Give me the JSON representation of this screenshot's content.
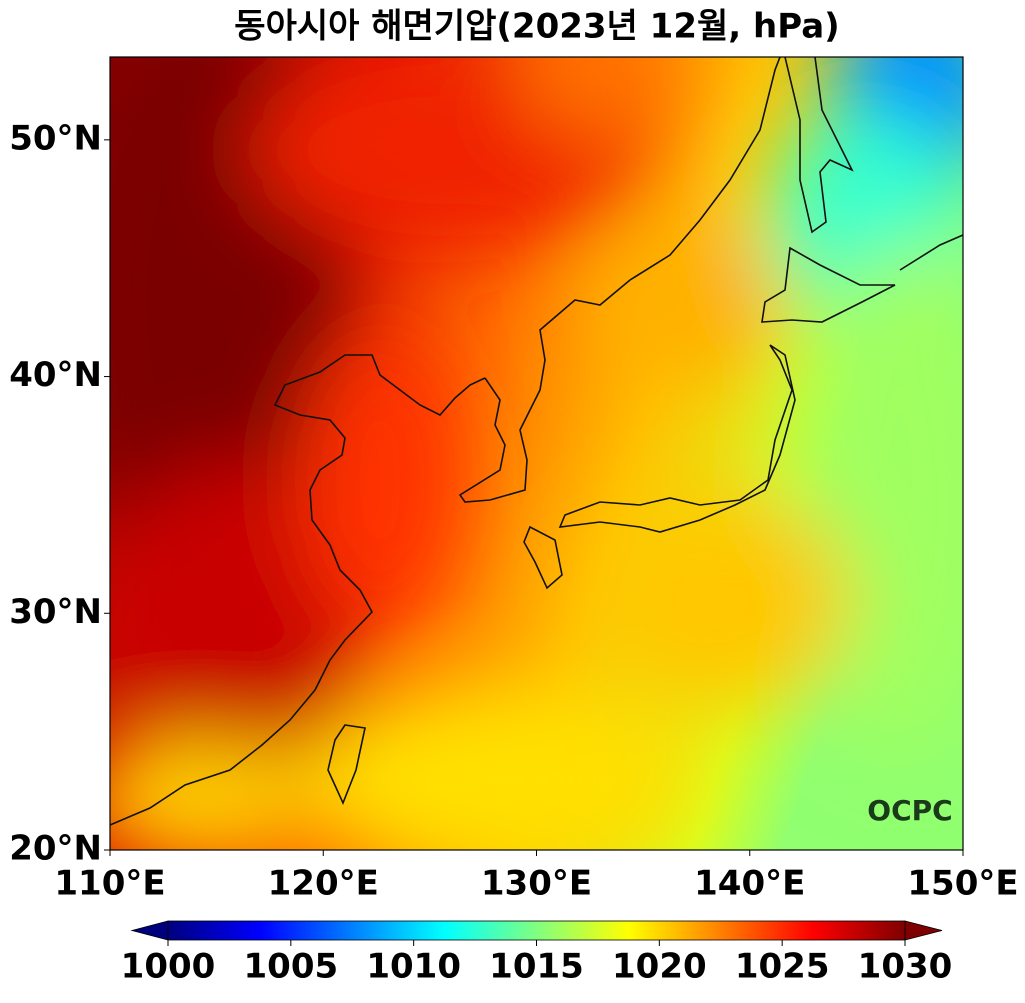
{
  "chart_data": {
    "type": "map",
    "title": "동아시아 해면기압(2023년 12월, hPa)",
    "xlim": [
      110,
      150
    ],
    "ylim": [
      20,
      53.5
    ],
    "xticks": [
      {
        "value": 110,
        "label": "110°E"
      },
      {
        "value": 120,
        "label": "120°E"
      },
      {
        "value": 130,
        "label": "130°E"
      },
      {
        "value": 140,
        "label": "140°E"
      },
      {
        "value": 150,
        "label": "150°E"
      }
    ],
    "yticks": [
      {
        "value": 20,
        "label": "20°N"
      },
      {
        "value": 30,
        "label": "30°N"
      },
      {
        "value": 40,
        "label": "40°N"
      },
      {
        "value": 50,
        "label": "50°N"
      }
    ],
    "clim": [
      1000,
      1030
    ],
    "cticks": [
      1000,
      1005,
      1010,
      1015,
      1020,
      1025,
      1030
    ],
    "colormap": [
      "#00007f",
      "#0000ff",
      "#0080ff",
      "#00ffff",
      "#80ff80",
      "#ffff00",
      "#ff8000",
      "#ff0000",
      "#7f0000"
    ],
    "watermark": "OCPC"
  }
}
